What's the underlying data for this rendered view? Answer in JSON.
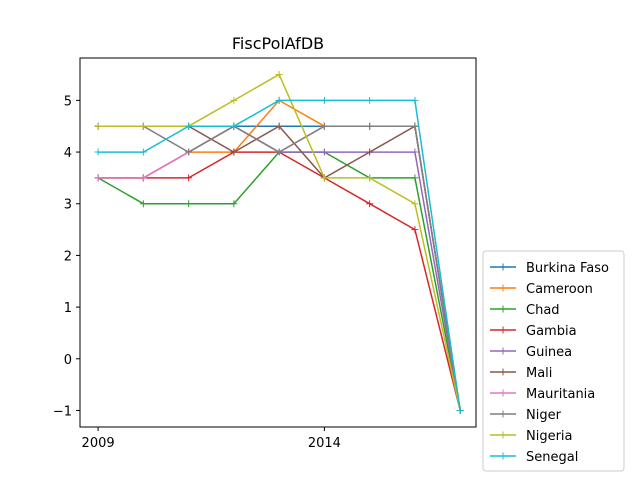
{
  "chart_data": {
    "type": "line",
    "title": "FiscPolAfDB",
    "xlabel": "",
    "ylabel": "",
    "x": [
      2009,
      2010,
      2011,
      2012,
      2013,
      2014,
      2015,
      2016,
      2017
    ],
    "xticks": [
      2009,
      2014
    ],
    "xtick_labels": [
      "2009",
      "2014"
    ],
    "yticks": [
      -1,
      0,
      1,
      2,
      3,
      4,
      5
    ],
    "ytick_labels": [
      "−1",
      "0",
      "1",
      "2",
      "3",
      "4",
      "5"
    ],
    "xlim": [
      2008.6,
      2017.35
    ],
    "ylim": [
      -1.32,
      5.82
    ],
    "grid": false,
    "legend_placement": "outside-right-bottom",
    "marker": "+",
    "series": [
      {
        "name": "Burkina Faso",
        "color": "#1f77b4",
        "values": [
          4.5,
          4.5,
          4.5,
          4.5,
          4.5,
          4.5,
          4.5,
          4.5,
          -1
        ]
      },
      {
        "name": "Cameroon",
        "color": "#ff7f0e",
        "values": [
          3.5,
          3.5,
          4.0,
          4.0,
          5.0,
          4.5,
          4.5,
          4.5,
          -1
        ]
      },
      {
        "name": "Chad",
        "color": "#2ca02c",
        "values": [
          3.5,
          3.0,
          3.0,
          3.0,
          4.0,
          4.0,
          3.5,
          3.5,
          -1
        ]
      },
      {
        "name": "Gambia",
        "color": "#d62728",
        "values": [
          3.5,
          3.5,
          3.5,
          4.0,
          4.0,
          3.5,
          3.0,
          2.5,
          -1
        ]
      },
      {
        "name": "Guinea",
        "color": "#9467bd",
        "values": [
          3.5,
          3.5,
          4.0,
          4.5,
          4.0,
          4.0,
          4.0,
          4.0,
          -1
        ]
      },
      {
        "name": "Mali",
        "color": "#8c564b",
        "values": [
          4.5,
          4.5,
          4.5,
          4.0,
          4.5,
          3.5,
          4.0,
          4.5,
          -1
        ]
      },
      {
        "name": "Mauritania",
        "color": "#e377c2",
        "values": [
          3.5,
          3.5,
          4.0,
          4.5,
          4.0,
          4.5,
          4.5,
          4.5,
          -1
        ]
      },
      {
        "name": "Niger",
        "color": "#7f7f7f",
        "values": [
          4.5,
          4.5,
          4.0,
          4.5,
          4.0,
          4.5,
          4.5,
          4.5,
          -1
        ]
      },
      {
        "name": "Nigeria",
        "color": "#bcbd22",
        "values": [
          4.5,
          4.5,
          4.5,
          5.0,
          5.5,
          3.5,
          3.5,
          3.0,
          -1
        ]
      },
      {
        "name": "Senegal",
        "color": "#17becf",
        "values": [
          4.0,
          4.0,
          4.5,
          4.5,
          5.0,
          5.0,
          5.0,
          5.0,
          -1
        ]
      }
    ]
  }
}
